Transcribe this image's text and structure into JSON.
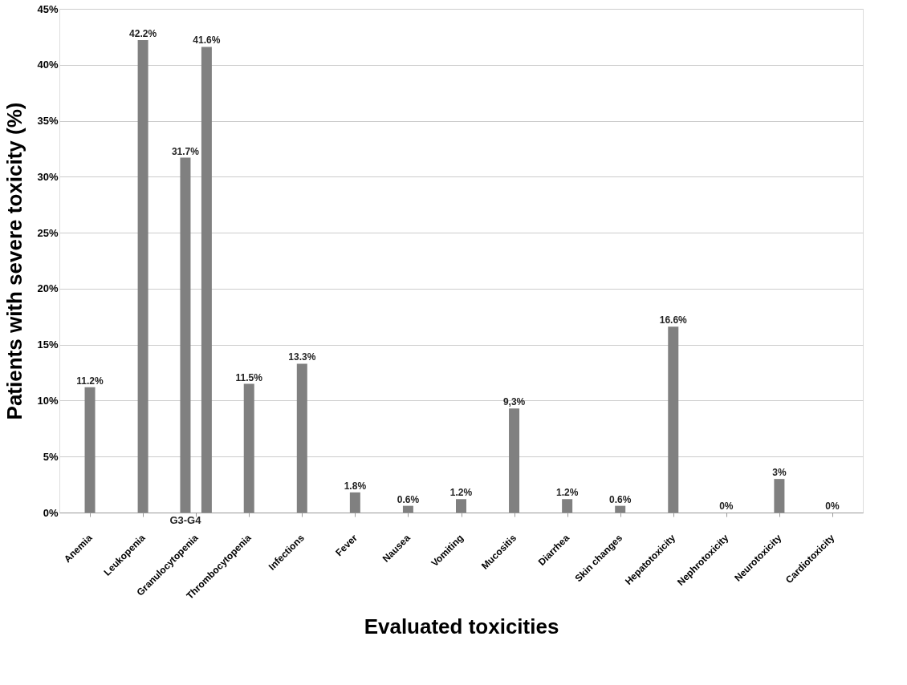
{
  "chart_data": {
    "type": "bar",
    "xlabel": "Evaluated toxicities",
    "ylabel": "Patients with severe  toxicity (%)",
    "categories": [
      "Anemia",
      "Leukopenia",
      "Granulocytopenia",
      "Thrombocytopenia",
      "Infections",
      "Fever",
      "Nausea",
      "Vomiting",
      "Mucositis",
      "Diarrhea",
      "Skin changes",
      "Hepatotoxicity",
      "Nephrotoxicity",
      "Neurotoxicity",
      "Cardiotoxicity"
    ],
    "series": [
      {
        "color": "#808080",
        "values": [
          11.2,
          42.2,
          31.7,
          11.5,
          13.3,
          1.8,
          0.6,
          1.2,
          9.3,
          1.2,
          0.6,
          16.6,
          0,
          3,
          0
        ],
        "value_labels": [
          "11.2%",
          "42.2%",
          "31.7%",
          "11.5%",
          "13.3%",
          "1.8%",
          "0.6%",
          "1.2%",
          "9,3%",
          "1.2%",
          "0.6%",
          "16.6%",
          "0%",
          "3%",
          "0%"
        ]
      },
      {
        "color": "#808080",
        "values": [
          null,
          null,
          41.6,
          null,
          null,
          null,
          null,
          null,
          null,
          null,
          null,
          null,
          null,
          null,
          null
        ],
        "value_labels": [
          null,
          null,
          "41.6%",
          null,
          null,
          null,
          null,
          null,
          null,
          null,
          null,
          null,
          null,
          null,
          null
        ]
      }
    ],
    "annotations": [
      "G3-G4"
    ],
    "ylim": [
      0,
      45
    ],
    "yticks": [
      {
        "value": 0,
        "label": "0%"
      },
      {
        "value": 5,
        "label": "5%"
      },
      {
        "value": 10,
        "label": "10%"
      },
      {
        "value": 15,
        "label": "15%"
      },
      {
        "value": 20,
        "label": "20%"
      },
      {
        "value": 25,
        "label": "25%"
      },
      {
        "value": 30,
        "label": "30%"
      },
      {
        "value": 35,
        "label": "35%"
      },
      {
        "value": 40,
        "label": "40%"
      },
      {
        "value": 45,
        "label": "45%"
      }
    ],
    "grid": "y",
    "legend": false
  }
}
